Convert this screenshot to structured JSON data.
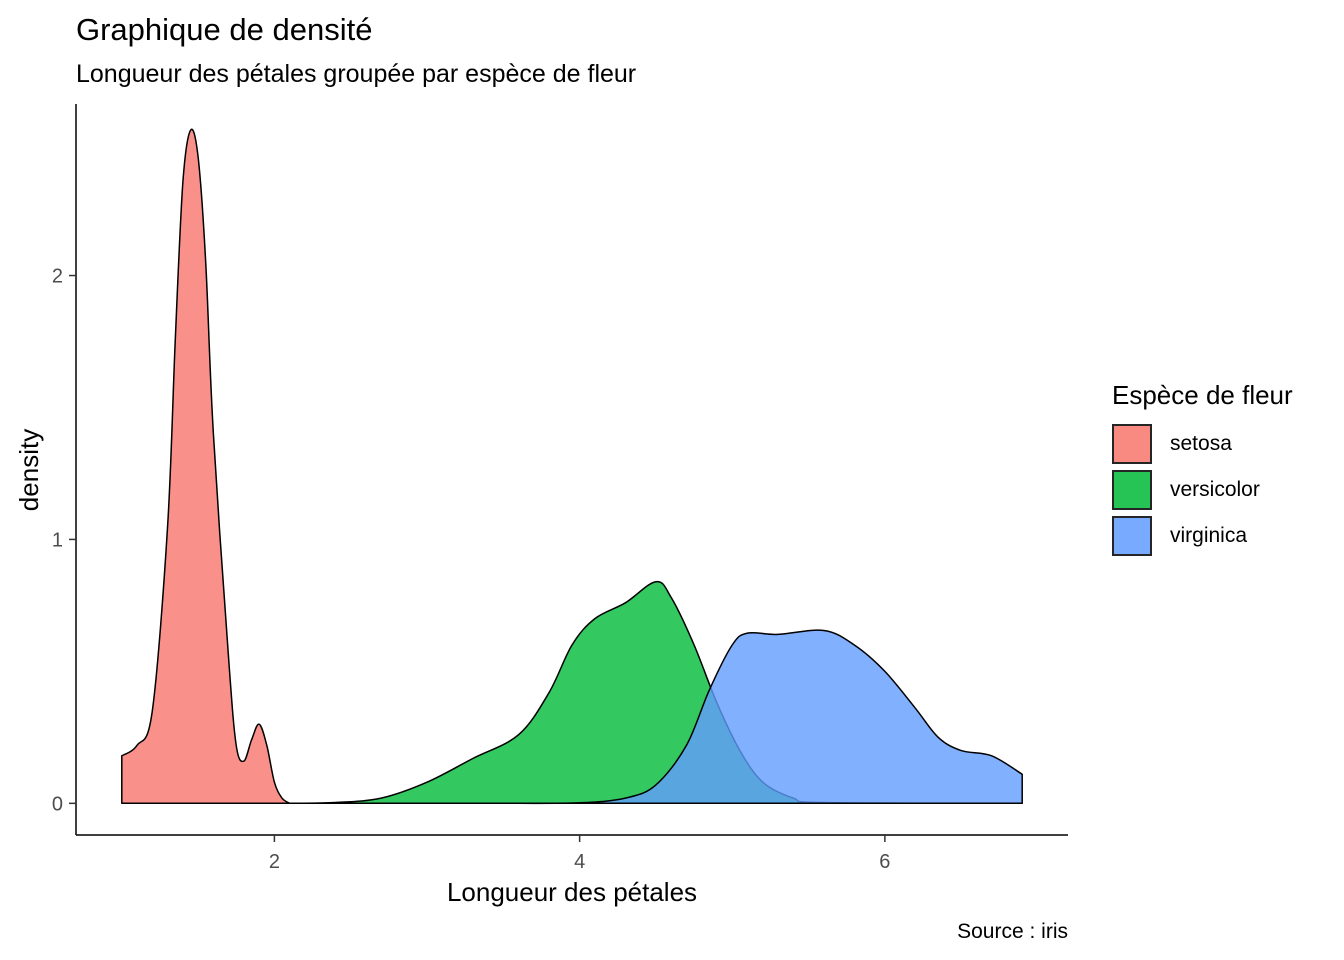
{
  "chart_data": {
    "type": "area",
    "title": "Graphique de densité",
    "subtitle": "Longueur des pétales groupée par espèce de fleur",
    "caption": "Source : iris",
    "xlabel": "Longueur des pétales",
    "ylabel": "density",
    "xlim": [
      0.7,
      7.2
    ],
    "ylim": [
      -0.12,
      2.65
    ],
    "xticks": [
      2,
      4,
      6
    ],
    "yticks": [
      0,
      1,
      2
    ],
    "grid": false,
    "legend_position": "right",
    "legend_title": "Espèce de fleur",
    "series": [
      {
        "name": "setosa",
        "color": "#F8766D",
        "points": [
          [
            1.0,
            0.18
          ],
          [
            1.1,
            0.22
          ],
          [
            1.2,
            0.35
          ],
          [
            1.3,
            1.05
          ],
          [
            1.35,
            1.75
          ],
          [
            1.4,
            2.35
          ],
          [
            1.45,
            2.55
          ],
          [
            1.5,
            2.45
          ],
          [
            1.55,
            2.05
          ],
          [
            1.6,
            1.4
          ],
          [
            1.7,
            0.55
          ],
          [
            1.75,
            0.22
          ],
          [
            1.8,
            0.16
          ],
          [
            1.85,
            0.24
          ],
          [
            1.9,
            0.3
          ],
          [
            1.95,
            0.22
          ],
          [
            2.0,
            0.08
          ],
          [
            2.05,
            0.02
          ],
          [
            2.1,
            0.0
          ]
        ]
      },
      {
        "name": "versicolor",
        "color": "#00BA38",
        "points": [
          [
            2.1,
            0.0
          ],
          [
            2.4,
            0.003
          ],
          [
            2.7,
            0.02
          ],
          [
            3.0,
            0.08
          ],
          [
            3.3,
            0.17
          ],
          [
            3.6,
            0.26
          ],
          [
            3.8,
            0.42
          ],
          [
            3.95,
            0.6
          ],
          [
            4.1,
            0.7
          ],
          [
            4.3,
            0.76
          ],
          [
            4.5,
            0.84
          ],
          [
            4.6,
            0.78
          ],
          [
            4.75,
            0.6
          ],
          [
            4.9,
            0.38
          ],
          [
            5.05,
            0.2
          ],
          [
            5.2,
            0.08
          ],
          [
            5.4,
            0.02
          ],
          [
            5.6,
            0.003
          ],
          [
            6.9,
            0.0
          ]
        ]
      },
      {
        "name": "virginica",
        "color": "#619CFF",
        "points": [
          [
            3.5,
            0.0
          ],
          [
            4.0,
            0.002
          ],
          [
            4.3,
            0.02
          ],
          [
            4.5,
            0.07
          ],
          [
            4.7,
            0.22
          ],
          [
            4.85,
            0.43
          ],
          [
            5.0,
            0.6
          ],
          [
            5.1,
            0.645
          ],
          [
            5.3,
            0.64
          ],
          [
            5.6,
            0.655
          ],
          [
            5.8,
            0.6
          ],
          [
            6.0,
            0.5
          ],
          [
            6.2,
            0.36
          ],
          [
            6.35,
            0.25
          ],
          [
            6.5,
            0.2
          ],
          [
            6.7,
            0.18
          ],
          [
            6.9,
            0.11
          ]
        ]
      }
    ]
  }
}
